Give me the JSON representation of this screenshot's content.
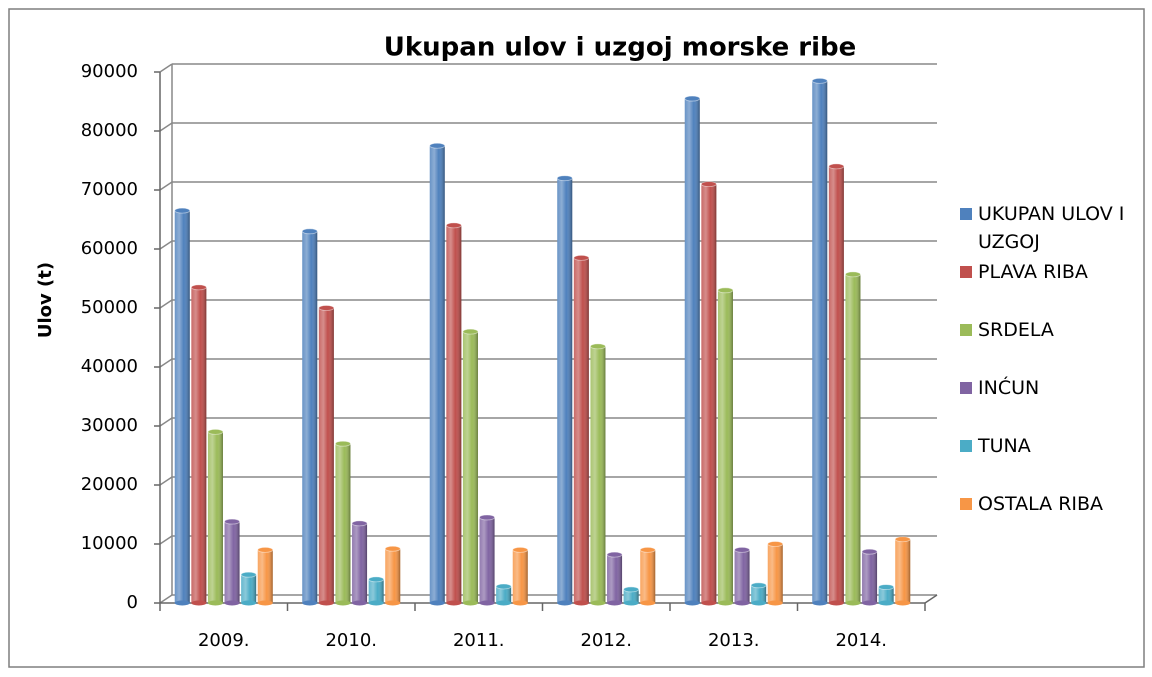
{
  "chart_data": {
    "type": "bar",
    "title": "Ukupan ulov i uzgoj morske ribe",
    "y_label": "Ulov (t)",
    "categories": [
      "2009.",
      "2010.",
      "2011.",
      "2012.",
      "2013.",
      "2014."
    ],
    "series": [
      {
        "name": "UKUPAN ULOV I UZGOJ",
        "color": "#4f81bd",
        "values": [
          66500,
          63000,
          77500,
          72000,
          85500,
          88500
        ]
      },
      {
        "name": "PLAVA RIBA",
        "color": "#c0504d",
        "values": [
          53500,
          50000,
          64000,
          58500,
          71000,
          74000
        ]
      },
      {
        "name": "SRDELA",
        "color": "#9bbb59",
        "values": [
          29000,
          27000,
          46000,
          43500,
          53000,
          55700
        ]
      },
      {
        "name": "INĆUN",
        "color": "#8064a2",
        "values": [
          13800,
          13500,
          14500,
          8200,
          9000,
          8700
        ]
      },
      {
        "name": "TUNA",
        "color": "#4bacc6",
        "values": [
          4800,
          4000,
          2800,
          2300,
          3000,
          2700
        ]
      },
      {
        "name": "OSTALA RIBA",
        "color": "#f79646",
        "values": [
          9000,
          9200,
          9000,
          9000,
          10000,
          10800
        ]
      }
    ],
    "ylim": [
      0,
      90000
    ],
    "yticks": [
      0,
      10000,
      20000,
      30000,
      40000,
      50000,
      60000,
      70000,
      80000,
      90000
    ],
    "grid": true,
    "legend": "right"
  }
}
